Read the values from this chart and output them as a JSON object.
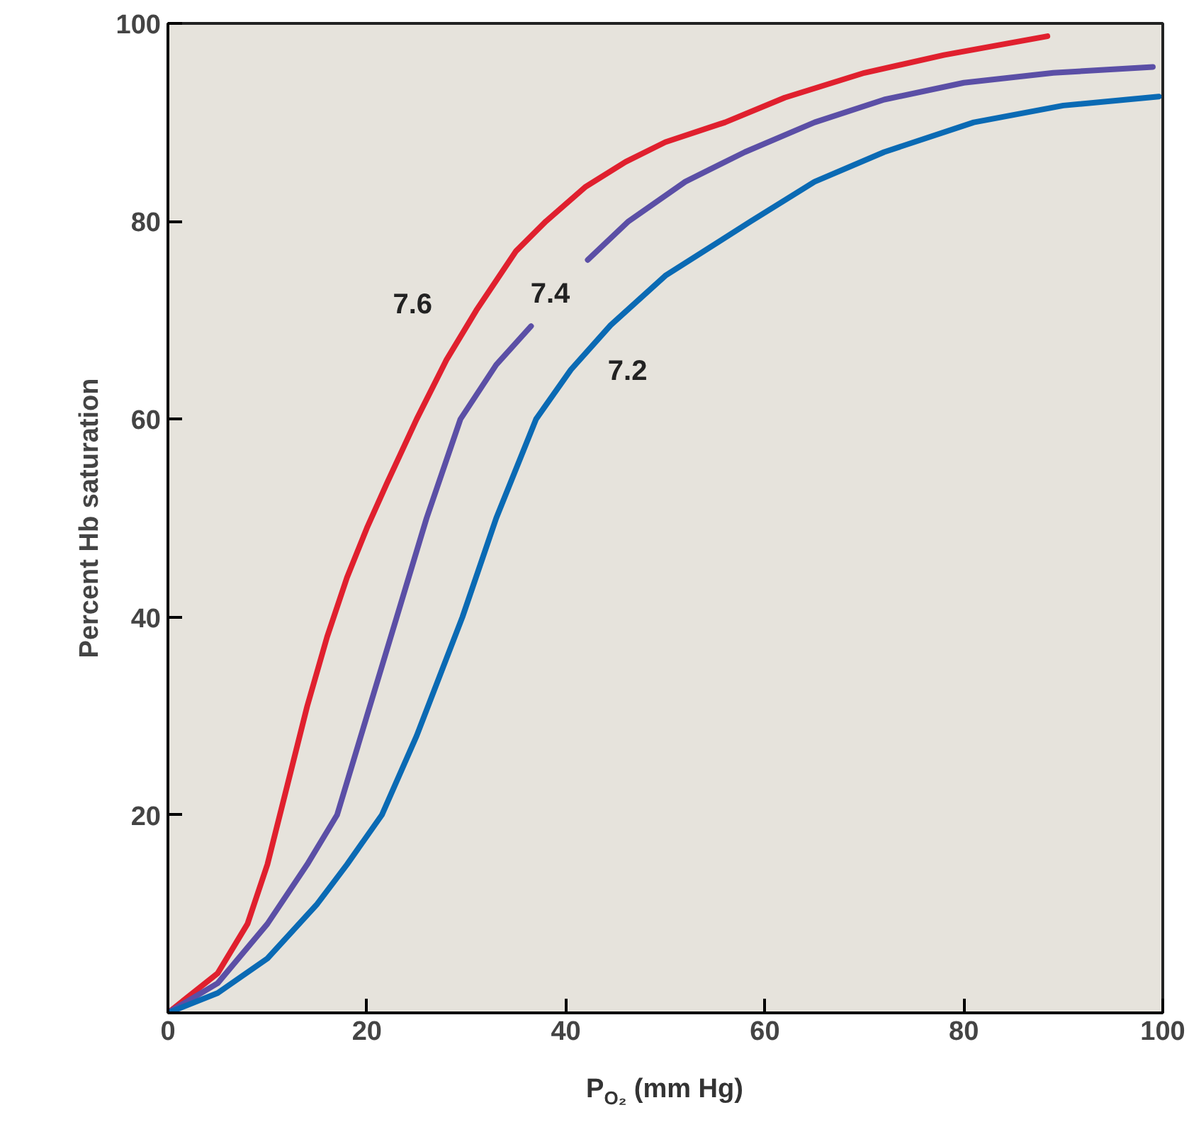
{
  "chart_data": {
    "type": "line",
    "xlabel": "P$_{O₂}$ (mm Hg)",
    "ylabel": "Percent Hb saturation",
    "xlim": [
      0,
      100
    ],
    "ylim": [
      0,
      100
    ],
    "xticks": [
      0,
      20,
      40,
      60,
      80,
      100
    ],
    "yticks": [
      20,
      40,
      60,
      80,
      100
    ],
    "grid": false,
    "legend": false,
    "marker": "none",
    "line_style": "solid",
    "series": [
      {
        "name": "7.6",
        "color": "#e0202e",
        "x": [
          0,
          5,
          8,
          10,
          12,
          14,
          16,
          18,
          20,
          22,
          25,
          28,
          31,
          35,
          38,
          42,
          46,
          50,
          56,
          62,
          70,
          78,
          88.4
        ],
        "values": [
          0,
          4,
          9,
          15,
          23,
          31,
          38,
          44,
          49,
          53.5,
          60,
          66,
          71,
          77,
          80,
          83.5,
          86,
          88,
          90,
          92.5,
          95,
          96.8,
          98.7
        ]
      },
      {
        "name": "7.4",
        "color": "#5b4fa6",
        "x": [
          0,
          5,
          10,
          14,
          17,
          20,
          23,
          26,
          29.4,
          33,
          36.5,
          39,
          42.2,
          46.3,
          52,
          58,
          65,
          72,
          80,
          89,
          99
        ],
        "values": [
          0,
          3,
          9,
          15,
          20,
          30,
          40,
          50,
          60,
          65.5,
          69.4,
          null,
          76.1,
          80,
          84,
          87,
          90,
          92.3,
          94,
          95,
          95.6
        ]
      },
      {
        "name": "7.2",
        "color": "#0a6ab4",
        "x": [
          0,
          5,
          10,
          15,
          18,
          21.5,
          25,
          29.6,
          33,
          37,
          40.5,
          44.5,
          50,
          58.6,
          65,
          72,
          81,
          90,
          99.6
        ],
        "values": [
          0,
          2,
          5.5,
          11,
          15,
          20,
          28,
          40,
          50,
          60,
          65,
          69.5,
          74.5,
          80,
          84,
          87,
          90,
          91.7,
          92.6
        ]
      }
    ]
  }
}
